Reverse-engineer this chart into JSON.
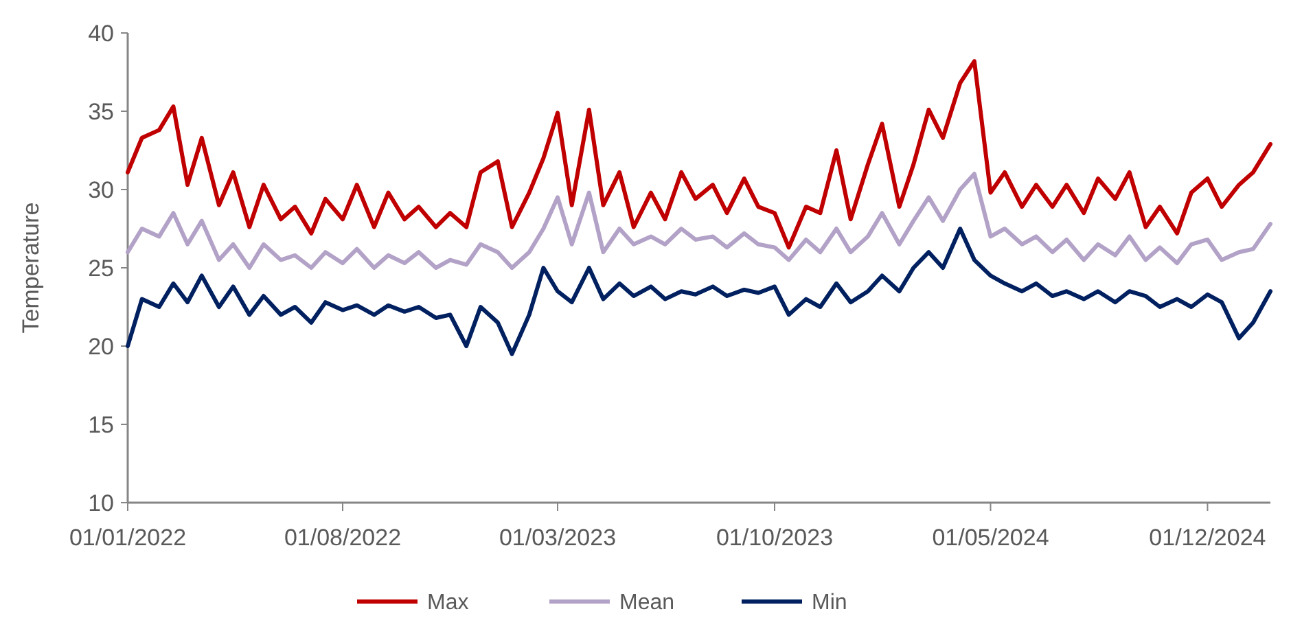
{
  "chart_data": {
    "type": "line",
    "ylabel": "Temperature",
    "x": [
      "2022-01-01",
      "2022-01-15",
      "2022-02-01",
      "2022-02-15",
      "2022-03-01",
      "2022-03-15",
      "2022-04-01",
      "2022-04-15",
      "2022-05-01",
      "2022-05-15",
      "2022-06-01",
      "2022-06-15",
      "2022-07-01",
      "2022-07-15",
      "2022-08-01",
      "2022-08-15",
      "2022-09-01",
      "2022-09-15",
      "2022-10-01",
      "2022-10-15",
      "2022-11-01",
      "2022-11-15",
      "2022-12-01",
      "2022-12-15",
      "2023-01-01",
      "2023-01-15",
      "2023-02-01",
      "2023-02-15",
      "2023-03-01",
      "2023-03-15",
      "2023-04-01",
      "2023-04-15",
      "2023-05-01",
      "2023-05-15",
      "2023-06-01",
      "2023-06-15",
      "2023-07-01",
      "2023-07-15",
      "2023-08-01",
      "2023-08-15",
      "2023-09-01",
      "2023-09-15",
      "2023-10-01",
      "2023-10-15",
      "2023-11-01",
      "2023-11-15",
      "2023-12-01",
      "2023-12-15",
      "2024-01-01",
      "2024-01-15",
      "2024-02-01",
      "2024-02-15",
      "2024-03-01",
      "2024-03-15",
      "2024-04-01",
      "2024-04-15",
      "2024-05-01",
      "2024-05-15",
      "2024-06-01",
      "2024-06-15",
      "2024-07-01",
      "2024-07-15",
      "2024-08-01",
      "2024-08-15",
      "2024-09-01",
      "2024-09-15",
      "2024-10-01",
      "2024-10-15",
      "2024-11-01",
      "2024-11-15",
      "2024-12-01",
      "2024-12-15",
      "2025-01-01",
      "2025-01-15",
      "2025-02-01"
    ],
    "series": [
      {
        "name": "Max",
        "color": "#c00000",
        "values": [
          31.1,
          33.3,
          33.8,
          35.3,
          30.3,
          33.3,
          29.0,
          31.1,
          27.6,
          30.3,
          28.1,
          28.9,
          27.2,
          29.4,
          28.1,
          30.3,
          27.6,
          29.8,
          28.1,
          28.9,
          27.6,
          28.5,
          27.6,
          31.1,
          31.8,
          27.6,
          29.8,
          32.0,
          34.9,
          29.0,
          35.1,
          29.0,
          31.1,
          27.6,
          29.8,
          28.1,
          31.1,
          29.4,
          30.3,
          28.5,
          30.7,
          28.9,
          28.5,
          26.3,
          28.9,
          28.5,
          32.5,
          28.1,
          31.6,
          34.2,
          28.9,
          31.6,
          35.1,
          33.3,
          36.8,
          38.2,
          29.8,
          31.1,
          28.9,
          30.3,
          28.9,
          30.3,
          28.5,
          30.7,
          29.4,
          31.1,
          27.6,
          28.9,
          27.2,
          29.8,
          30.7,
          28.9,
          30.3,
          31.1,
          32.9
        ]
      },
      {
        "name": "Mean",
        "color": "#b3a2c7",
        "values": [
          26.0,
          27.5,
          27.0,
          28.5,
          26.5,
          28.0,
          25.5,
          26.5,
          25.0,
          26.5,
          25.5,
          25.8,
          25.0,
          26.0,
          25.3,
          26.2,
          25.0,
          25.8,
          25.3,
          26.0,
          25.0,
          25.5,
          25.2,
          26.5,
          26.0,
          25.0,
          26.0,
          27.5,
          29.5,
          26.5,
          29.8,
          26.0,
          27.5,
          26.5,
          27.0,
          26.5,
          27.5,
          26.8,
          27.0,
          26.3,
          27.2,
          26.5,
          26.3,
          25.5,
          26.8,
          26.0,
          27.5,
          26.0,
          27.0,
          28.5,
          26.5,
          28.0,
          29.5,
          28.0,
          30.0,
          31.0,
          27.0,
          27.5,
          26.5,
          27.0,
          26.0,
          26.8,
          25.5,
          26.5,
          25.8,
          27.0,
          25.5,
          26.3,
          25.3,
          26.5,
          26.8,
          25.5,
          26.0,
          26.2,
          27.8
        ]
      },
      {
        "name": "Min",
        "color": "#002060",
        "values": [
          20.0,
          23.0,
          22.5,
          24.0,
          22.8,
          24.5,
          22.5,
          23.8,
          22.0,
          23.2,
          22.0,
          22.5,
          21.5,
          22.8,
          22.3,
          22.6,
          22.0,
          22.6,
          22.2,
          22.5,
          21.8,
          22.0,
          20.0,
          22.5,
          21.5,
          19.5,
          22.0,
          25.0,
          23.5,
          22.8,
          25.0,
          23.0,
          24.0,
          23.2,
          23.8,
          23.0,
          23.5,
          23.3,
          23.8,
          23.2,
          23.6,
          23.4,
          23.8,
          22.0,
          23.0,
          22.5,
          24.0,
          22.8,
          23.5,
          24.5,
          23.5,
          25.0,
          26.0,
          25.0,
          27.5,
          25.5,
          24.5,
          24.0,
          23.5,
          24.0,
          23.2,
          23.5,
          23.0,
          23.5,
          22.8,
          23.5,
          23.2,
          22.5,
          23.0,
          22.5,
          23.3,
          22.8,
          20.5,
          21.5,
          23.5
        ]
      }
    ],
    "xlim": [
      "2022-01-01",
      "2025-02-01"
    ],
    "xticks": [
      {
        "value": "2022-01-01",
        "label": "01/01/2022"
      },
      {
        "value": "2022-08-01",
        "label": "01/08/2022"
      },
      {
        "value": "2023-03-01",
        "label": "01/03/2023"
      },
      {
        "value": "2023-10-01",
        "label": "01/10/2023"
      },
      {
        "value": "2024-05-01",
        "label": "01/05/2024"
      },
      {
        "value": "2024-12-01",
        "label": "01/12/2024"
      }
    ],
    "ylim": [
      10,
      40
    ],
    "yticks": [
      10,
      15,
      20,
      25,
      30,
      35,
      40
    ],
    "grid": false,
    "legend": "bottom",
    "marker": "none",
    "line_style": "solid"
  }
}
